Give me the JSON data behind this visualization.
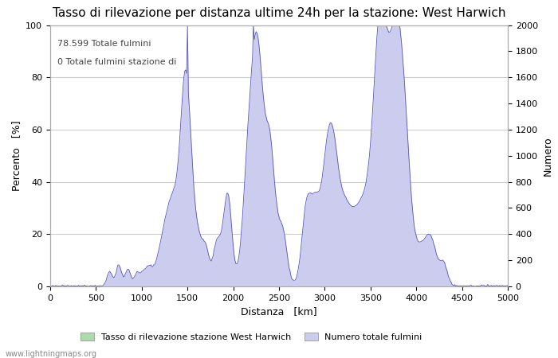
{
  "title": "Tasso di rilevazione per distanza ultime 24h per la stazione: West Harwich",
  "xlabel": "Distanza   [km]",
  "ylabel_left": "Percento   [%]",
  "ylabel_right": "Numero",
  "annotation_line1": "78.599 Totale fulmini",
  "annotation_line2": "0 Totale fulmini stazione di",
  "xlim": [
    0,
    5000
  ],
  "ylim_left": [
    0,
    100
  ],
  "ylim_right": [
    0,
    2000
  ],
  "xticks": [
    0,
    500,
    1000,
    1500,
    2000,
    2500,
    3000,
    3500,
    4000,
    4500,
    5000
  ],
  "yticks_left": [
    0,
    20,
    40,
    60,
    80,
    100
  ],
  "yticks_right": [
    0,
    200,
    400,
    600,
    800,
    1000,
    1200,
    1400,
    1600,
    1800,
    2000
  ],
  "legend_label_green": "Tasso di rilevazione stazione West Harwich",
  "legend_label_blue": "Numero totale fulmini",
  "fill_green_color": "#aaddaa",
  "fill_blue_color": "#ccccee",
  "line_color": "#5555bb",
  "watermark": "www.lightningmaps.org",
  "bg_color": "#ffffff",
  "grid_color": "#cccccc",
  "title_fontsize": 11,
  "axis_fontsize": 9,
  "tick_fontsize": 8,
  "annot_fontsize": 8
}
